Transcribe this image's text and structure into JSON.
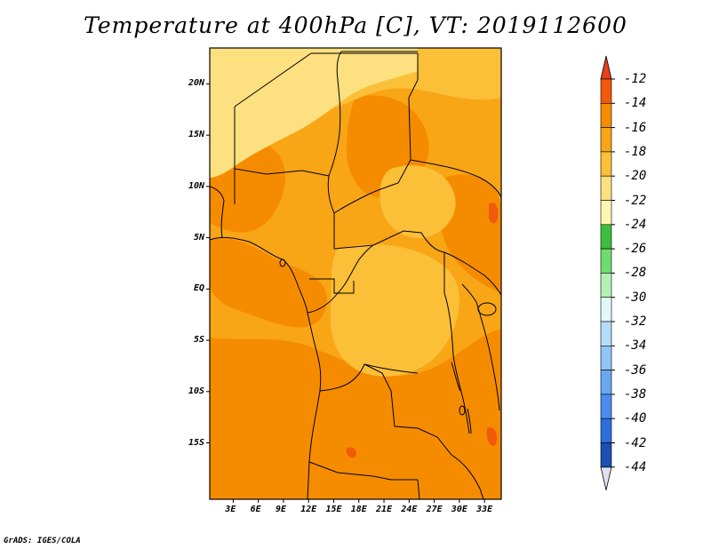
{
  "title": "Temperature at 400hPa [C], VT: 2019112600",
  "credit": "GrADS: IGES/COLA",
  "map": {
    "lat_ticks": [
      "20N",
      "15N",
      "10N",
      "5N",
      "EQ",
      "5S",
      "10S",
      "15S"
    ],
    "lon_ticks": [
      "3E",
      "6E",
      "9E",
      "12E",
      "15E",
      "18E",
      "21E",
      "24E",
      "27E",
      "30E",
      "33E"
    ],
    "lat_range": [
      -20.5,
      23.5
    ],
    "lon_range": [
      0.2,
      35.0
    ]
  },
  "colorbar": {
    "labels": [
      "-12",
      "-14",
      "-16",
      "-18",
      "-20",
      "-22",
      "-24",
      "-26",
      "-28",
      "-30",
      "-32",
      "-34",
      "-36",
      "-38",
      "-40",
      "-42",
      "-44"
    ],
    "colors": [
      "#f05a0a",
      "#f58c00",
      "#f8a516",
      "#fbbf38",
      "#fde080",
      "#fef5b0",
      "#3cbf3c",
      "#6fdc6f",
      "#b4f0b4",
      "#e2f7f7",
      "#b5dcf7",
      "#92c5f5",
      "#69a7f1",
      "#4a8cf0",
      "#2b6edc",
      "#1c4fb4",
      "#0c1c80"
    ],
    "top_triangle": "#e8401a",
    "bottom_triangle": "#e0e0f0"
  },
  "fields": {
    "base": "#f8a516",
    "warm": "#f58c00",
    "cool": "#fbbf38",
    "cold": "#fde080",
    "hot": "#f05a0a"
  }
}
